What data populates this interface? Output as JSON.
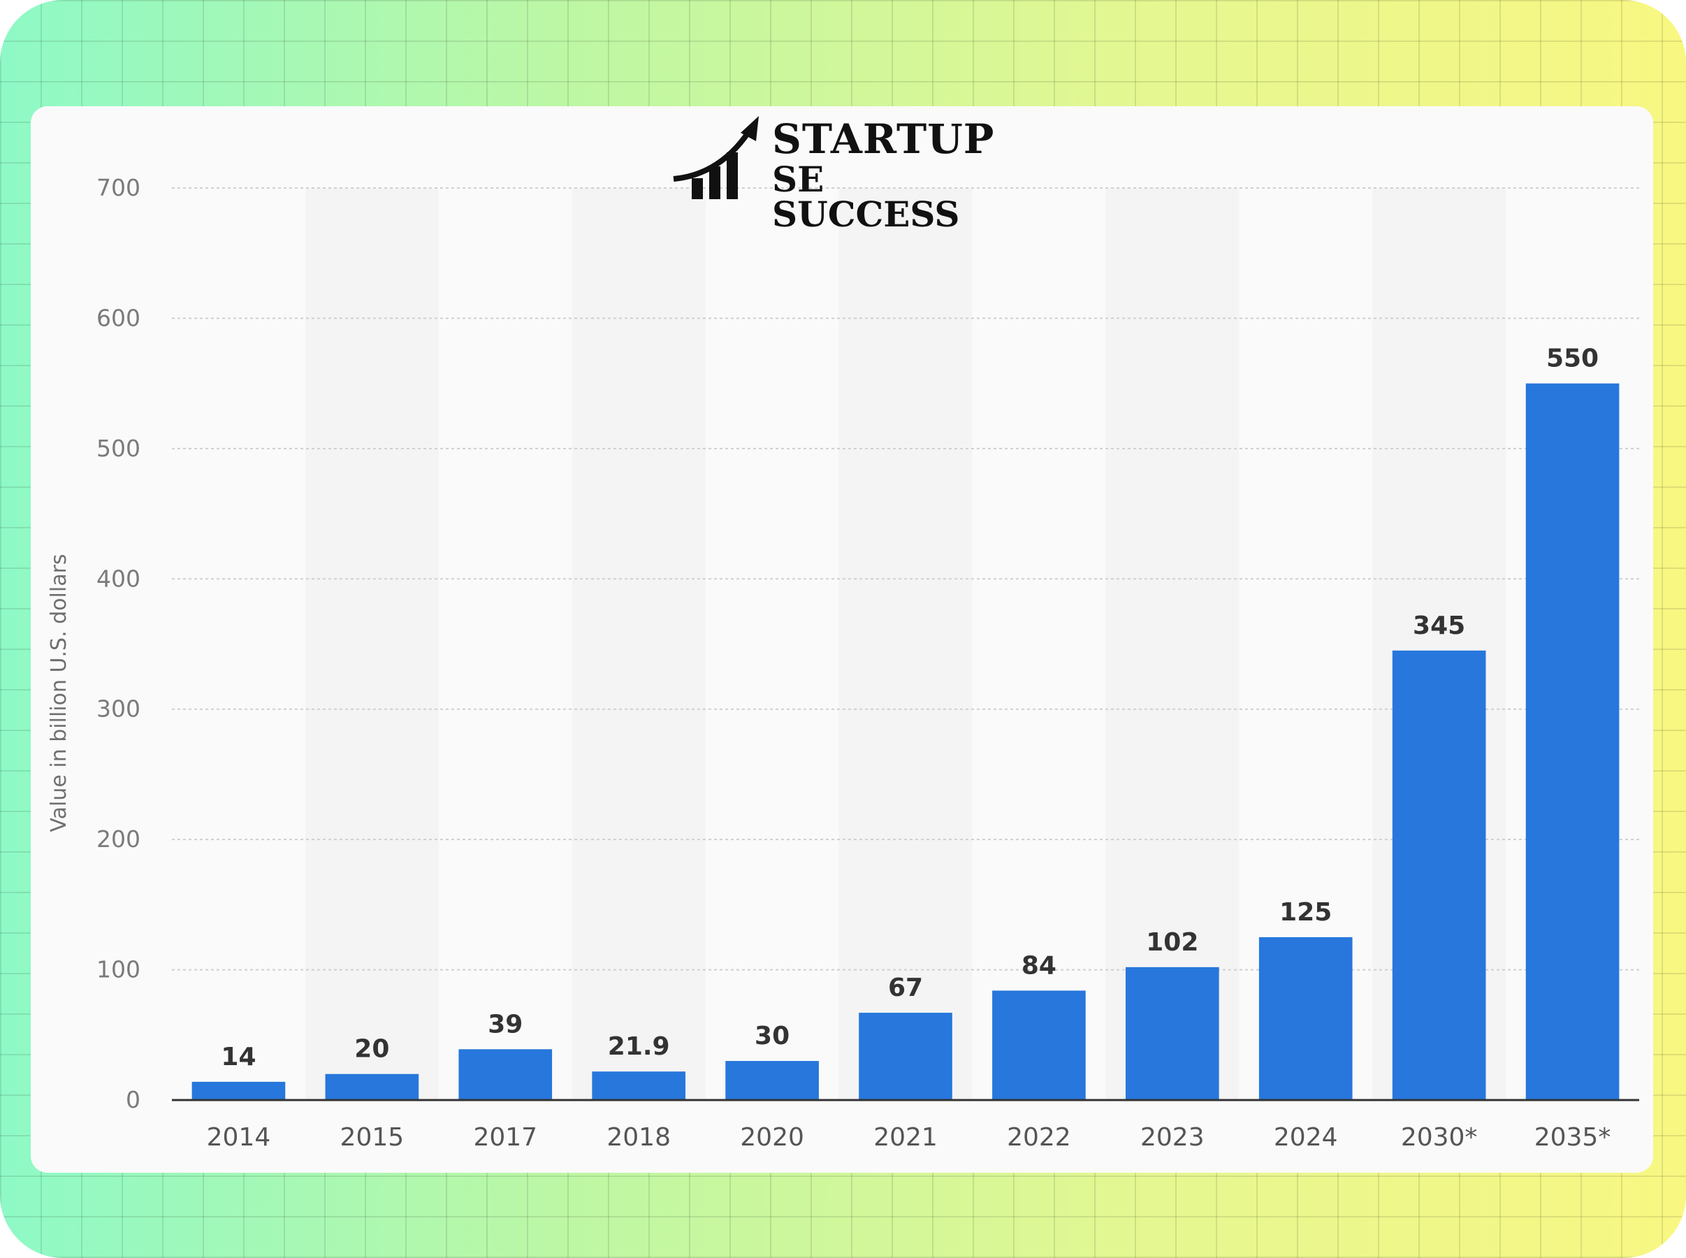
{
  "brand": {
    "line1": "STARTUP",
    "line2": "SE SUCCESS"
  },
  "colors": {
    "bar": "#2777dc",
    "grid": "#cfcfcf",
    "axis": "#333333",
    "band": "#f4f4f4"
  },
  "chart_data": {
    "type": "bar",
    "title": "",
    "xlabel": "",
    "ylabel": "Value in billion U.S. dollars",
    "ylim": [
      0,
      700
    ],
    "yticks": [
      0,
      100,
      200,
      300,
      400,
      500,
      600,
      700
    ],
    "grid": true,
    "categories": [
      "2014",
      "2015",
      "2017",
      "2018",
      "2020",
      "2021",
      "2022",
      "2023",
      "2024",
      "2030*",
      "2035*"
    ],
    "values": [
      14,
      20,
      39,
      21.9,
      30,
      67,
      84,
      102,
      125,
      345,
      550
    ],
    "value_labels": [
      "14",
      "20",
      "39",
      "21.9",
      "30",
      "67",
      "84",
      "102",
      "125",
      "345",
      "550"
    ]
  }
}
